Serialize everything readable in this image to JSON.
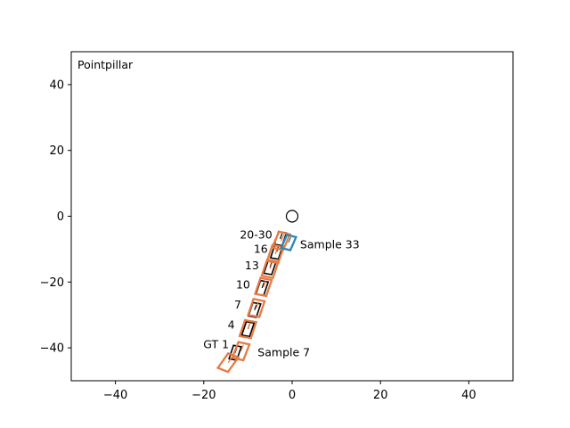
{
  "chart_data": {
    "type": "scatter",
    "title": "",
    "xlabel": "",
    "ylabel": "",
    "xlim": [
      -50,
      50
    ],
    "ylim": [
      -50,
      50
    ],
    "x_ticks": [
      -40,
      -20,
      0,
      20,
      40
    ],
    "y_ticks": [
      -40,
      -20,
      0,
      20,
      40
    ],
    "x_tick_labels": [
      "−40",
      "−20",
      "0",
      "20",
      "40"
    ],
    "y_tick_labels": [
      "−40",
      "−20",
      "0",
      "20",
      "40"
    ],
    "grid": false,
    "panel_label": "Pointpillar",
    "ego_marker": {
      "x": 0,
      "y": 0,
      "shape": "circle"
    },
    "colors": {
      "gt": "#000000",
      "sample": "#e87a43",
      "highlight": "#2a86b4"
    },
    "series": [
      {
        "kind": "gt",
        "boxes": [
          {
            "x": -12.9,
            "y": -41.5,
            "heading_deg": 76
          },
          {
            "x": -10.0,
            "y": -34.3,
            "heading_deg": 76
          },
          {
            "x": -8.5,
            "y": -28.5,
            "heading_deg": 76
          },
          {
            "x": -6.8,
            "y": -21.8,
            "heading_deg": 76
          },
          {
            "x": -5.0,
            "y": -15.5,
            "heading_deg": 76
          },
          {
            "x": -3.5,
            "y": -10.8,
            "heading_deg": 76
          },
          {
            "x": -2.7,
            "y": -6.9,
            "heading_deg": 76
          }
        ]
      },
      {
        "kind": "sample",
        "boxes": [
          {
            "x": -14.5,
            "y": -44.5,
            "heading_deg": 62
          },
          {
            "x": -11.6,
            "y": -41.0,
            "heading_deg": 74
          },
          {
            "x": -10.0,
            "y": -34.3,
            "heading_deg": 76
          },
          {
            "x": -8.1,
            "y": -27.9,
            "heading_deg": 76
          },
          {
            "x": -6.5,
            "y": -21.5,
            "heading_deg": 76
          },
          {
            "x": -5.0,
            "y": -16.0,
            "heading_deg": 76
          },
          {
            "x": -3.8,
            "y": -11.5,
            "heading_deg": 76
          },
          {
            "x": -2.5,
            "y": -7.5,
            "heading_deg": 72
          }
        ]
      },
      {
        "kind": "highlight",
        "boxes": [
          {
            "x": -0.8,
            "y": -8.0,
            "heading_deg": 72
          }
        ]
      }
    ],
    "annotations": [
      {
        "text": "20-30",
        "x": -4.5,
        "y": -5.7,
        "align": "end"
      },
      {
        "text": "16",
        "x": -5.5,
        "y": -10.0,
        "align": "end"
      },
      {
        "text": "13",
        "x": -7.5,
        "y": -15.0,
        "align": "end"
      },
      {
        "text": "10",
        "x": -9.5,
        "y": -20.9,
        "align": "end"
      },
      {
        "text": "7",
        "x": -11.5,
        "y": -26.9,
        "align": "end"
      },
      {
        "text": "4",
        "x": -13.0,
        "y": -33.0,
        "align": "end"
      },
      {
        "text": "GT 1",
        "x": -14.3,
        "y": -39.0,
        "align": "end"
      },
      {
        "text": "Sample 33",
        "x": 1.8,
        "y": -8.7,
        "align": "start"
      },
      {
        "text": "Sample 7",
        "x": -7.8,
        "y": -41.5,
        "align": "start"
      }
    ]
  }
}
